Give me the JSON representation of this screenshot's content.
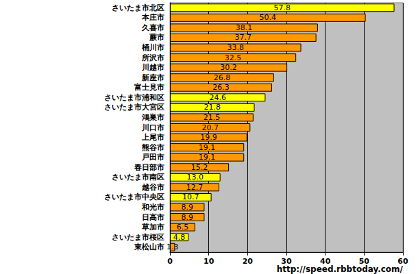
{
  "chart_data": {
    "type": "bar",
    "orientation": "horizontal",
    "categories": [
      "さいたま市北区",
      "本庄市",
      "久喜市",
      "蕨市",
      "桶川市",
      "所沢市",
      "川越市",
      "新座市",
      "富士見市",
      "さいたま市浦和区",
      "さいたま市大宮区",
      "鴻巣市",
      "川口市",
      "上尾市",
      "熊谷市",
      "戸田市",
      "春日部市",
      "さいたま市南区",
      "越谷市",
      "さいたま市中央区",
      "和光市",
      "日高市",
      "草加市",
      "さいたま市桜区",
      "東松山市"
    ],
    "values": [
      57.8,
      50.4,
      38.1,
      37.7,
      33.8,
      32.5,
      30.2,
      26.8,
      26.3,
      24.6,
      21.8,
      21.5,
      20.7,
      19.9,
      19.1,
      19.1,
      15.2,
      13.0,
      12.7,
      10.7,
      8.9,
      8.9,
      6.5,
      4.8,
      1.3
    ],
    "value_labels": [
      "57.8",
      "50.4",
      "38.1",
      "37.7",
      "33.8",
      "32.5",
      "30.2",
      "26.8",
      "26.3",
      "24.6",
      "21.8",
      "21.5",
      "20.7",
      "19.9",
      "19.1",
      "19.1",
      "15.2",
      "13.0",
      "12.7",
      "10.7",
      "8.9",
      "8.9",
      "6.5",
      "4.8",
      "1.3"
    ],
    "colors": [
      "#ffff00",
      "#ff9900",
      "#ff9900",
      "#ff9900",
      "#ff9900",
      "#ff9900",
      "#ff9900",
      "#ff9900",
      "#ff9900",
      "#ffff00",
      "#ffff00",
      "#ff9900",
      "#ff9900",
      "#ff9900",
      "#ff9900",
      "#ff9900",
      "#ff9900",
      "#ffff00",
      "#ff9900",
      "#ffff00",
      "#ff9900",
      "#ff9900",
      "#ff9900",
      "#ffff00",
      "#ff9900"
    ],
    "xlim": [
      0,
      60
    ],
    "xticks": [
      0,
      10,
      20,
      30,
      40,
      50,
      60
    ],
    "grid": true,
    "data_labels": true,
    "annotation": "http://speed.rbbtoday.com/"
  }
}
